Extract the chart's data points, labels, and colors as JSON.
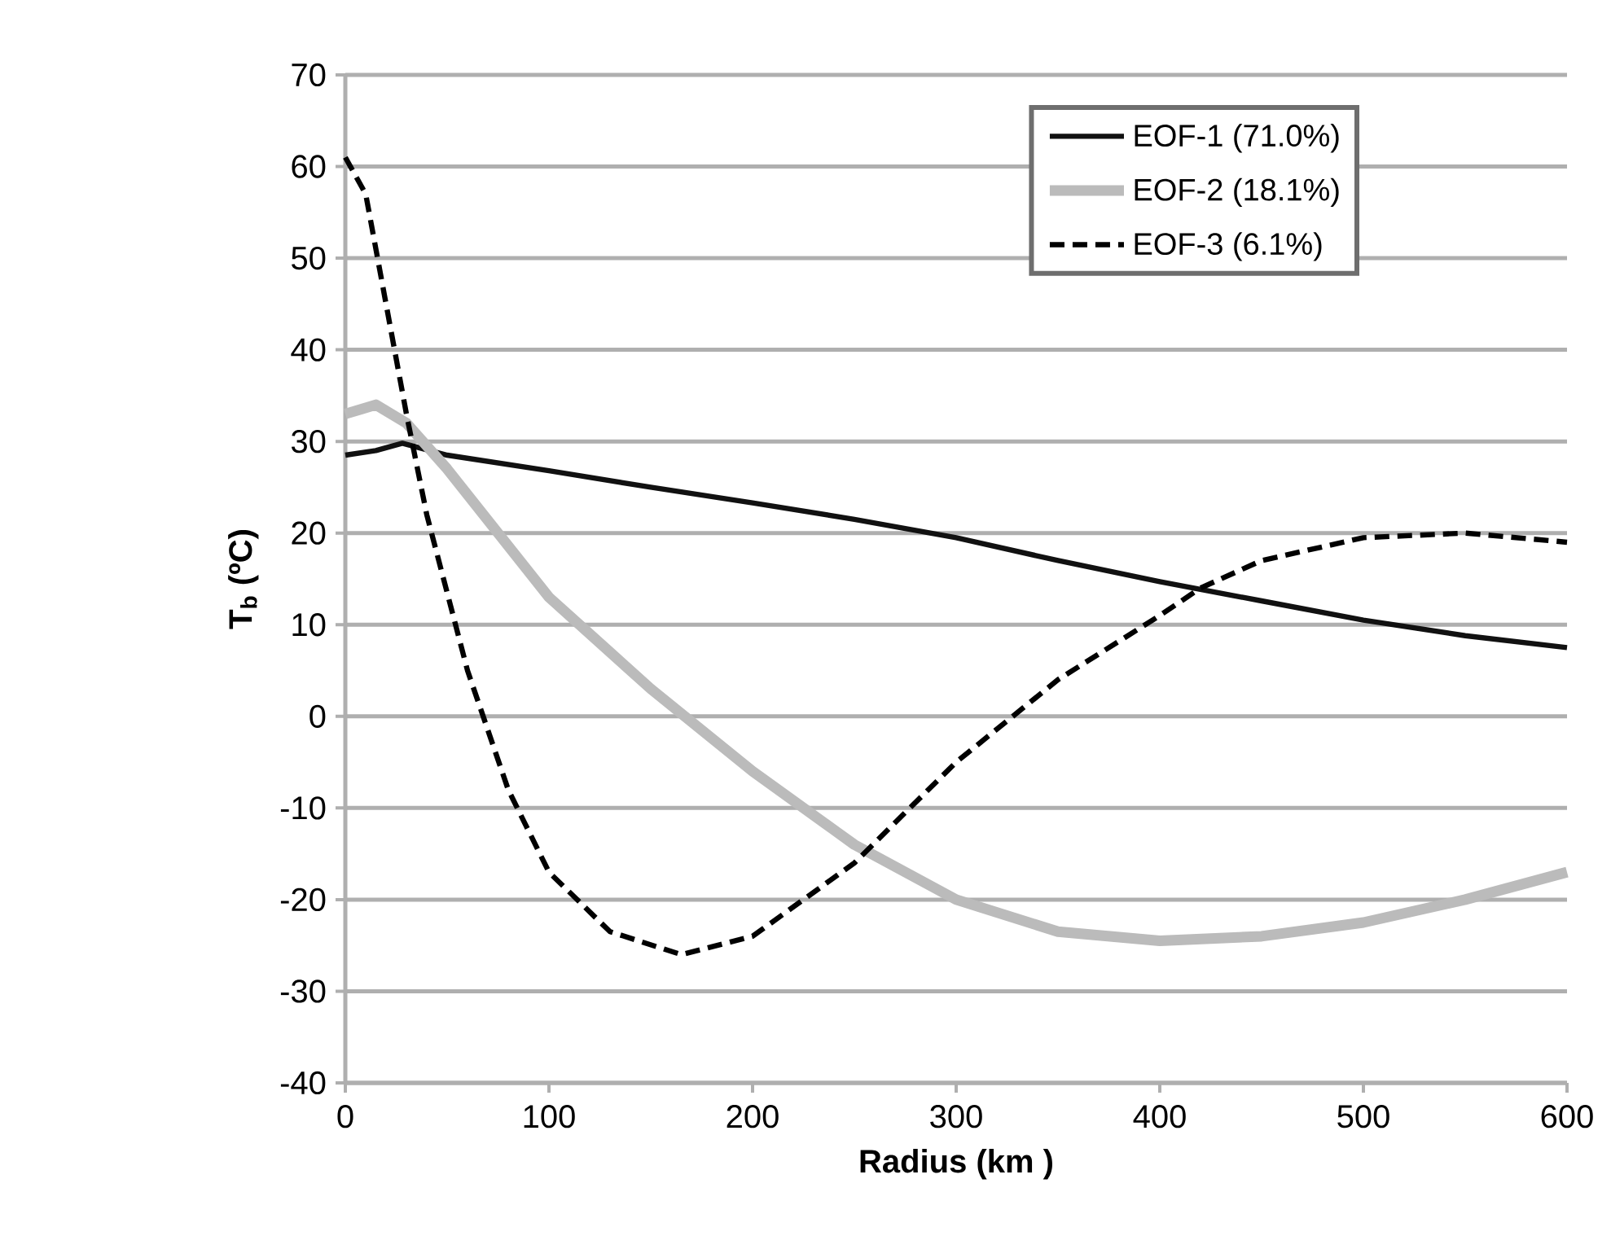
{
  "chart_data": {
    "type": "line",
    "xlabel": "Radius (km )",
    "ylabel": "T$_{b}$ (ºC)",
    "xlim": [
      0,
      600
    ],
    "ylim": [
      -40,
      70
    ],
    "xticks": [
      0,
      100,
      200,
      300,
      400,
      500,
      600
    ],
    "yticks": [
      -40,
      -30,
      -20,
      -10,
      0,
      10,
      20,
      30,
      40,
      50,
      60,
      70
    ],
    "grid": "y",
    "legend": "top right",
    "series": [
      {
        "name": "EOF-1 (71.0%)",
        "color": "#111111",
        "line_style": "solid",
        "x": [
          0,
          15,
          28,
          50,
          100,
          150,
          200,
          250,
          300,
          350,
          400,
          450,
          500,
          550,
          600
        ],
        "values": [
          28.5,
          29,
          29.8,
          28.5,
          26.8,
          25,
          23.3,
          21.5,
          19.5,
          17,
          14.7,
          12.6,
          10.5,
          8.8,
          7.5
        ]
      },
      {
        "name": "EOF-2 (18.1%)",
        "color": "#bbbbbb",
        "line_style": "solid",
        "x": [
          0,
          15,
          30,
          50,
          75,
          100,
          150,
          200,
          250,
          300,
          350,
          400,
          450,
          500,
          550,
          600
        ],
        "values": [
          33,
          34,
          32,
          27,
          20,
          13,
          3,
          -6,
          -14,
          -20,
          -23.5,
          -24.5,
          -24,
          -22.5,
          -20,
          -17
        ]
      },
      {
        "name": "EOF-3 (6.1%)",
        "color": "#000000",
        "line_style": "dashed",
        "x": [
          0,
          10,
          20,
          30,
          40,
          60,
          80,
          100,
          130,
          165,
          200,
          250,
          300,
          350,
          400,
          420,
          450,
          500,
          550,
          600
        ],
        "values": [
          61,
          57,
          45,
          33,
          22,
          5,
          -8,
          -17,
          -23.5,
          -26,
          -24,
          -16,
          -5,
          4,
          11,
          14,
          17,
          19.5,
          20,
          19
        ]
      }
    ]
  }
}
